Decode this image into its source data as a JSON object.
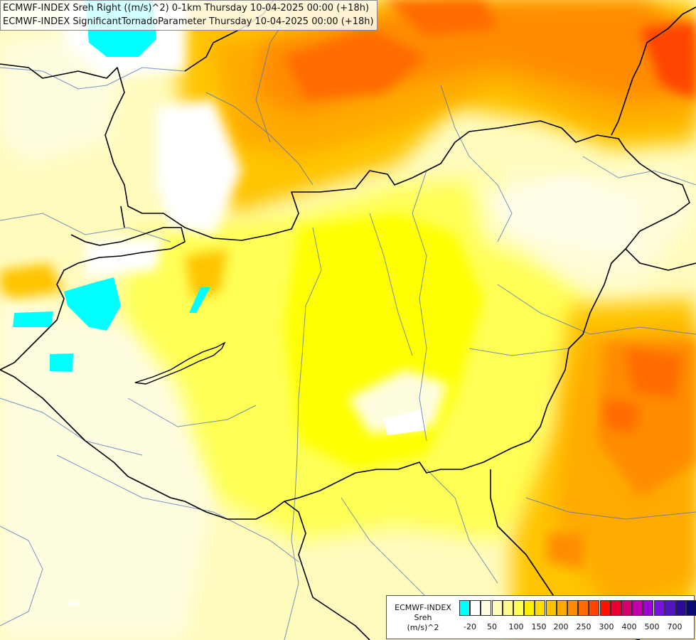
{
  "title": {
    "line1": "ECMWF-INDEX Sreh Right ((m/s)^2) 0-1km Thursday 10-04-2025 00:00 (+18h)",
    "line2": "ECMWF-INDEX SignificantTornadoParameter Thursday 10-04-2025 00:00 (+18h)"
  },
  "legend": {
    "line1": "ECMWF-INDEX",
    "line2": "Sreh",
    "line3": "(m/s)^2",
    "colors": [
      "#00ffff",
      "#ffffff",
      "#fffde0",
      "#fffbbd",
      "#fffa8c",
      "#ffff55",
      "#ffee00",
      "#ffdd00",
      "#ffc400",
      "#ffaa00",
      "#ff8c00",
      "#ff6a00",
      "#ff4400",
      "#ff1100",
      "#e80030",
      "#d4006e",
      "#c000a8",
      "#a000d8",
      "#7a10e0",
      "#5014c0",
      "#2a0a98",
      "#0a0a70"
    ],
    "tick_labels": [
      "-20",
      "50",
      "100",
      "150",
      "200",
      "250",
      "300",
      "400",
      "500",
      "700"
    ]
  }
}
